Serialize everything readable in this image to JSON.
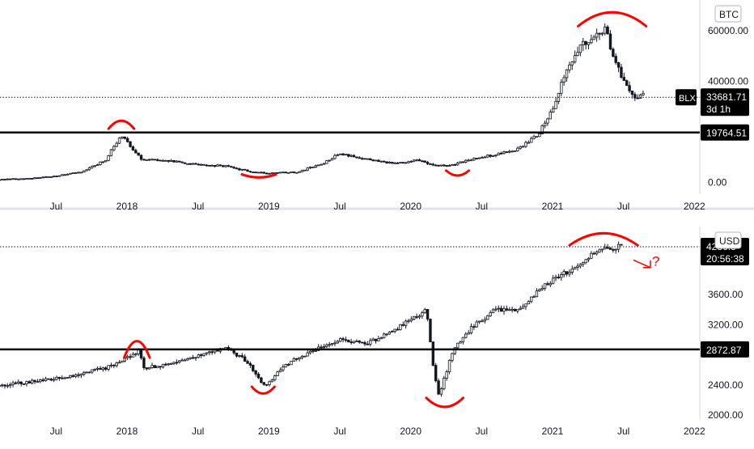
{
  "colors": {
    "candle": "#131722",
    "annotation": "#ff0000",
    "axis_text": "#131722",
    "label_bg": "#000000",
    "label_text": "#ffffff",
    "divider": "#e0e3eb"
  },
  "time_axis": {
    "labels": [
      {
        "text": "Jul",
        "t": 2017.5
      },
      {
        "text": "2018",
        "t": 2018.0
      },
      {
        "text": "Jul",
        "t": 2018.5
      },
      {
        "text": "2019",
        "t": 2019.0
      },
      {
        "text": "Jul",
        "t": 2019.5
      },
      {
        "text": "2020",
        "t": 2020.0
      },
      {
        "text": "Jul",
        "t": 2020.5
      },
      {
        "text": "2021",
        "t": 2021.0
      },
      {
        "text": "Jul",
        "t": 2021.5
      },
      {
        "text": "2022",
        "t": 2022.0
      }
    ]
  },
  "chart_data": [
    {
      "type": "candlestick",
      "series_name": "BLX",
      "currency_badge": "BTC",
      "y_ticks": [
        0,
        20000,
        40000,
        60000
      ],
      "y_tick_labels": [
        "0.00",
        "",
        "40000.00",
        "60000.00"
      ],
      "ylim": [
        -4000,
        72000
      ],
      "xlim": [
        2016.6,
        2022.0
      ],
      "last_price": "33681.71",
      "last_price_value": 33681.71,
      "countdown": "3d 1h",
      "level_label": "19764.51",
      "level_value": 19764.51,
      "path": [
        [
          2016.6,
          1000
        ],
        [
          2017.0,
          1000
        ],
        [
          2017.3,
          1500
        ],
        [
          2017.5,
          2500
        ],
        [
          2017.7,
          4500
        ],
        [
          2017.85,
          9000
        ],
        [
          2017.96,
          19000
        ],
        [
          2018.03,
          14000
        ],
        [
          2018.1,
          9000
        ],
        [
          2018.3,
          8500
        ],
        [
          2018.5,
          7000
        ],
        [
          2018.7,
          6500
        ],
        [
          2018.88,
          4000
        ],
        [
          2019.0,
          3700
        ],
        [
          2019.2,
          4000
        ],
        [
          2019.4,
          8000
        ],
        [
          2019.5,
          11500
        ],
        [
          2019.7,
          9000
        ],
        [
          2019.9,
          7300
        ],
        [
          2020.05,
          9000
        ],
        [
          2020.18,
          6500
        ],
        [
          2020.3,
          7000
        ],
        [
          2020.45,
          9500
        ],
        [
          2020.6,
          11000
        ],
        [
          2020.75,
          13000
        ],
        [
          2020.9,
          19000
        ],
        [
          2021.0,
          29000
        ],
        [
          2021.1,
          45000
        ],
        [
          2021.2,
          55000
        ],
        [
          2021.3,
          58000
        ],
        [
          2021.38,
          62000
        ],
        [
          2021.42,
          50000
        ],
        [
          2021.5,
          40000
        ],
        [
          2021.58,
          34000
        ],
        [
          2021.65,
          35000
        ]
      ],
      "annotations": {
        "arcs": [
          {
            "center": [
              2017.96,
              22500
            ],
            "half_width_t": 0.09,
            "height": 3200,
            "dir": "top"
          },
          {
            "center": [
              2018.93,
              2700
            ],
            "half_width_t": 0.12,
            "height": 1200,
            "dir": "bottom"
          },
          {
            "center": [
              2020.33,
              3900
            ],
            "half_width_t": 0.08,
            "height": 2000,
            "dir": "bottom"
          },
          {
            "center": [
              2021.42,
              64000
            ],
            "half_width_t": 0.24,
            "height": 5500,
            "dir": "top"
          }
        ]
      }
    },
    {
      "type": "candlestick",
      "series_name": "",
      "currency_badge": "USD",
      "y_ticks": [
        2000,
        2400,
        2800,
        3200,
        3600,
        4000
      ],
      "y_tick_labels": [
        "2000.00",
        "2400.00",
        "",
        "3200.00",
        "3600.00",
        ""
      ],
      "ylim": [
        1950,
        4420
      ],
      "xlim": [
        2016.6,
        2022.0
      ],
      "last_price": "4236.8",
      "last_price_value": 4236.8,
      "countdown": "20:56:38",
      "level_label": "2872.87",
      "level_value": 2872.87,
      "path": [
        [
          2016.6,
          2300
        ],
        [
          2017.0,
          2380
        ],
        [
          2017.5,
          2480
        ],
        [
          2017.9,
          2650
        ],
        [
          2018.08,
          2850
        ],
        [
          2018.12,
          2620
        ],
        [
          2018.35,
          2700
        ],
        [
          2018.7,
          2900
        ],
        [
          2018.85,
          2700
        ],
        [
          2018.97,
          2380
        ],
        [
          2019.1,
          2650
        ],
        [
          2019.35,
          2900
        ],
        [
          2019.5,
          3000
        ],
        [
          2019.7,
          2950
        ],
        [
          2019.9,
          3150
        ],
        [
          2020.1,
          3380
        ],
        [
          2020.12,
          3300
        ],
        [
          2020.16,
          2600
        ],
        [
          2020.2,
          2250
        ],
        [
          2020.3,
          2880
        ],
        [
          2020.45,
          3200
        ],
        [
          2020.6,
          3400
        ],
        [
          2020.75,
          3400
        ],
        [
          2020.9,
          3650
        ],
        [
          2021.0,
          3800
        ],
        [
          2021.15,
          3950
        ],
        [
          2021.3,
          4180
        ],
        [
          2021.4,
          4200
        ],
        [
          2021.5,
          4260
        ]
      ],
      "annotations": {
        "arcs": [
          {
            "center": [
              2018.07,
              2850
            ],
            "half_width_t": 0.09,
            "height": 220,
            "dir": "top"
          },
          {
            "center": [
              2018.96,
              2340
            ],
            "half_width_t": 0.08,
            "height": 90,
            "dir": "bottom"
          },
          {
            "center": [
              2020.24,
              2180
            ],
            "half_width_t": 0.13,
            "height": 120,
            "dir": "bottom"
          },
          {
            "center": [
              2021.36,
              4320
            ],
            "half_width_t": 0.24,
            "height": 160,
            "dir": "top"
          }
        ],
        "question_arrow": {
          "from": [
            2021.57,
            4060
          ],
          "to": [
            2021.69,
            3960
          ],
          "label": "?"
        }
      }
    }
  ]
}
